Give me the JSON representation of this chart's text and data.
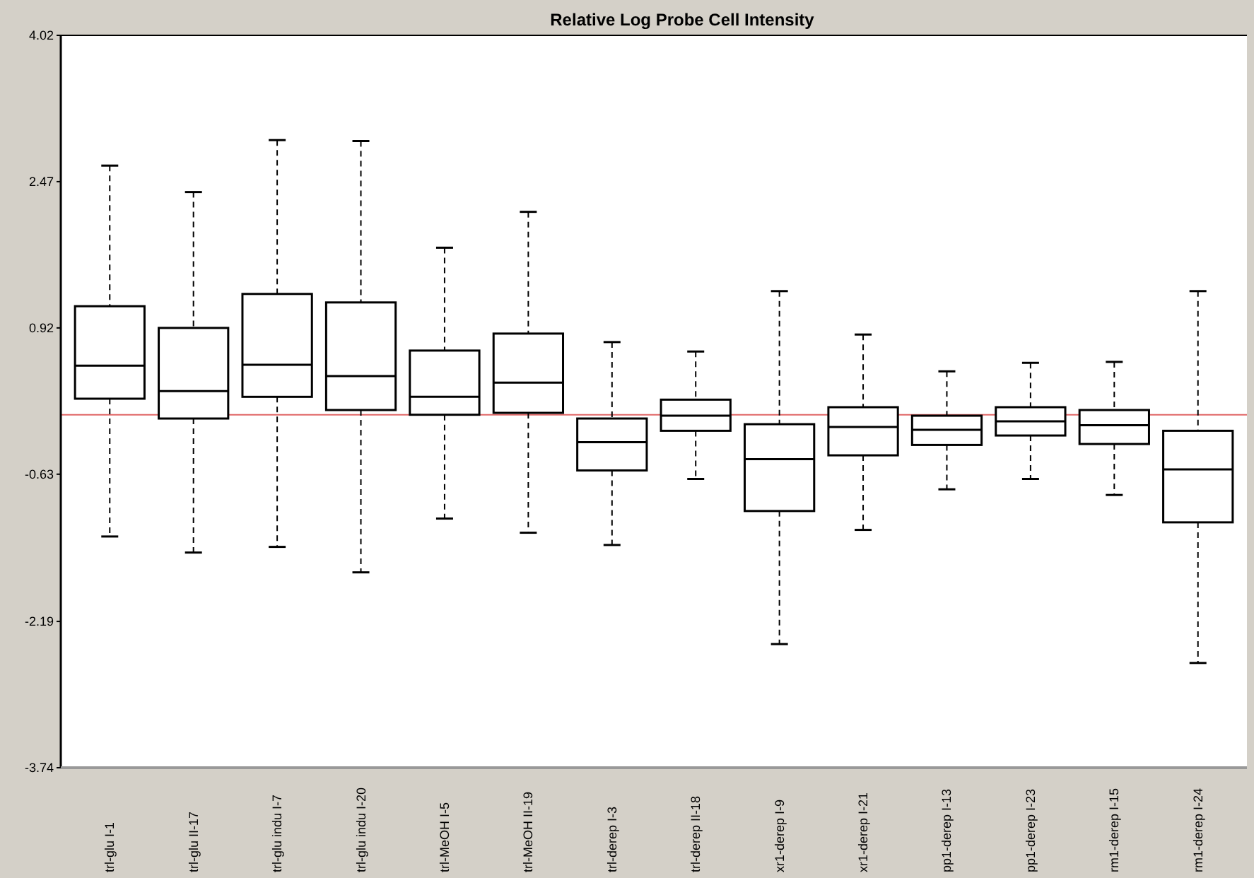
{
  "chart_data": {
    "type": "box",
    "title": "Relative Log Probe Cell Intensity",
    "categories": [
      "trl-glu I-1",
      "trl-glu II-17",
      "trl-glu indu I-7",
      "trl-glu indu I-20",
      "trl-MeOH I-5",
      "trl-MeOH II-19",
      "trl-derep I-3",
      "trl-derep II-18",
      "xr1-derep I-9",
      "xr1-derep I-21",
      "pp1-derep I-13",
      "pp1-derep I-23",
      "rm1-derep I-15",
      "rm1-derep I-24"
    ],
    "boxes": [
      {
        "low": -1.29,
        "q1": 0.17,
        "median": 0.52,
        "q3": 1.15,
        "high": 2.64
      },
      {
        "low": -1.46,
        "q1": -0.04,
        "median": 0.25,
        "q3": 0.92,
        "high": 2.36
      },
      {
        "low": -1.4,
        "q1": 0.19,
        "median": 0.53,
        "q3": 1.28,
        "high": 2.91
      },
      {
        "low": -1.67,
        "q1": 0.05,
        "median": 0.41,
        "q3": 1.19,
        "high": 2.9
      },
      {
        "low": -1.1,
        "q1": 0.0,
        "median": 0.19,
        "q3": 0.68,
        "high": 1.77
      },
      {
        "low": -1.25,
        "q1": 0.02,
        "median": 0.34,
        "q3": 0.86,
        "high": 2.15
      },
      {
        "low": -1.38,
        "q1": -0.59,
        "median": -0.29,
        "q3": -0.04,
        "high": 0.77
      },
      {
        "low": -0.68,
        "q1": -0.17,
        "median": -0.01,
        "q3": 0.16,
        "high": 0.67
      },
      {
        "low": -2.43,
        "q1": -1.02,
        "median": -0.47,
        "q3": -0.1,
        "high": 1.31
      },
      {
        "low": -1.22,
        "q1": -0.43,
        "median": -0.13,
        "q3": 0.08,
        "high": 0.85
      },
      {
        "low": -0.79,
        "q1": -0.32,
        "median": -0.16,
        "q3": -0.01,
        "high": 0.46
      },
      {
        "low": -0.68,
        "q1": -0.22,
        "median": -0.07,
        "q3": 0.08,
        "high": 0.55
      },
      {
        "low": -0.85,
        "q1": -0.31,
        "median": -0.11,
        "q3": 0.05,
        "high": 0.56
      },
      {
        "low": -2.63,
        "q1": -1.14,
        "median": -0.58,
        "q3": -0.17,
        "high": 1.31
      }
    ],
    "color": "#000000",
    "ylim": [
      -3.74,
      4.02
    ],
    "yticks": [
      4.02,
      2.47,
      0.92,
      -0.63,
      -2.19,
      -3.74
    ],
    "ref_lines": [
      {
        "axis": "y",
        "value": 0,
        "color": "#e06666"
      }
    ],
    "line_style": "dashed",
    "grid": false
  }
}
